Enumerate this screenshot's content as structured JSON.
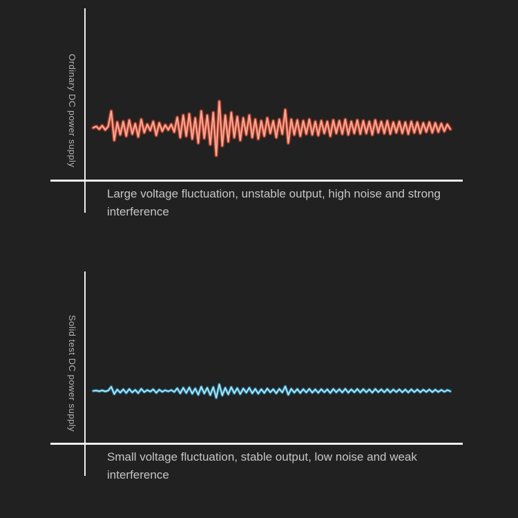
{
  "page": {
    "background": "#212121",
    "axis_color": "#f0f0f0",
    "caption_color": "#c6c6c6",
    "label_color": "#b4b4b4"
  },
  "charts": [
    {
      "label": "Ordinary DC power supply",
      "caption": "Large voltage fluctuation, unstable output, high noise and strong interference",
      "colors": {
        "glow": "#8a2f1f",
        "mid": "#d9604c",
        "core": "#f6b09c"
      },
      "stroke_widths": {
        "glow": 6,
        "mid": 3.4,
        "core": 1.6
      },
      "glow_opacity": 0.8
    },
    {
      "label": "Solid test DC power supply",
      "caption": "Small voltage fluctuation, stable output, low noise and weak interference",
      "colors": {
        "glow": "#1d5a72",
        "mid": "#55b4d6",
        "core": "#c6ecf8"
      },
      "stroke_widths": {
        "glow": 5,
        "mid": 2.8,
        "core": 1.2
      },
      "glow_opacity": 0.8
    }
  ],
  "chart_data": {
    "type": "line",
    "title": "",
    "xlabel": "",
    "ylabel_top": "Ordinary DC power supply",
    "ylabel_bottom": "Solid test DC power supply",
    "grid": false,
    "legend": false,
    "note": "Two oscilloscope-style noise waveforms on unlabeled axes; bottom trace is the same waveform shape at reduced amplitude",
    "waveform": [
      0,
      2,
      -2,
      3,
      -3,
      2,
      24,
      -18,
      8,
      -10,
      9,
      -12,
      11,
      -9,
      6,
      -13,
      12,
      -7,
      5,
      -4,
      9,
      -11,
      7,
      -5,
      4,
      -3,
      5,
      -6,
      15,
      -14,
      18,
      -12,
      20,
      -16,
      14,
      -22,
      24,
      -15,
      18,
      -24,
      22,
      -40,
      38,
      -26,
      18,
      -20,
      22,
      -14,
      16,
      -18,
      14,
      -10,
      18,
      -14,
      12,
      -16,
      10,
      -12,
      14,
      -8,
      10,
      -14,
      12,
      -9,
      26,
      -22,
      12,
      -10,
      11,
      -12,
      10,
      -9,
      12,
      -10,
      9,
      -11,
      10,
      -8,
      9,
      -12,
      11,
      -8,
      10,
      -9,
      12,
      -10,
      9,
      -8,
      11,
      -9,
      10,
      -8,
      9,
      -10,
      11,
      -7,
      9,
      -8,
      10,
      -9,
      8,
      -7,
      9,
      -8,
      8,
      -9,
      9,
      -7,
      8,
      -8,
      7,
      -6,
      8,
      -7,
      7,
      -6,
      6,
      -5,
      5,
      -2
    ],
    "series": [
      {
        "name": "Ordinary DC power supply",
        "amplitude_scale": 1.0
      },
      {
        "name": "Solid test DC power supply",
        "amplitude_scale": 0.25
      }
    ]
  }
}
